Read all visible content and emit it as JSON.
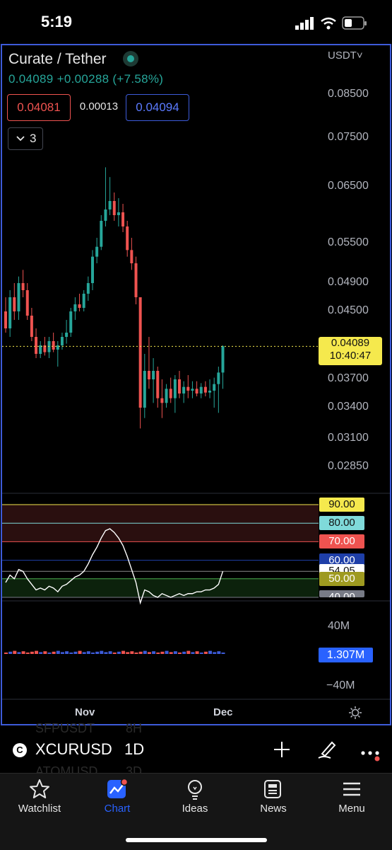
{
  "status_bar": {
    "time": "5:19"
  },
  "header": {
    "pair": "Curate / Tether",
    "last_price": "0.04089",
    "change": "+0.00288",
    "change_pct": "(+7.58%)",
    "bid": "0.04081",
    "spread": "0.00013",
    "ask": "0.04094",
    "indicator_count": "3",
    "currency": "USDT"
  },
  "price_axis": {
    "ticks": [
      "0.08500",
      "0.07500",
      "0.06500",
      "0.05500",
      "0.04900",
      "0.04500",
      "0.03700",
      "0.03400",
      "0.03100",
      "0.02850"
    ],
    "last_price_label": "0.04089",
    "countdown": "10:40:47"
  },
  "rsi_pane": {
    "levels": [
      {
        "label": "90.00",
        "bg": "#f5e94d",
        "fg": "#111111"
      },
      {
        "label": "80.00",
        "bg": "#7fdada",
        "fg": "#111111"
      },
      {
        "label": "70.00",
        "bg": "#ef5350",
        "fg": "#ffffff"
      },
      {
        "label": "60.00",
        "bg": "#1e3fa8",
        "fg": "#ffffff"
      },
      {
        "label": "54.05",
        "bg": "#ffffff",
        "fg": "#111111"
      },
      {
        "label": "50.00",
        "bg": "#9e9a20",
        "fg": "#ffffff"
      },
      {
        "label": "40.00",
        "bg": "#787b86",
        "fg": "#ffffff"
      }
    ]
  },
  "volume_pane": {
    "top_label": "40M",
    "bottom_label": "−40M",
    "current": "1.307M"
  },
  "time_axis": {
    "nov": "Nov",
    "dec": "Dec"
  },
  "symbol_bar": {
    "symbol": "XCURUSD",
    "interval": "1D",
    "ghost_top": "SFPUSDT",
    "ghost_top_interval": "8H",
    "ghost_bottom": "ATOMUSD",
    "ghost_bottom_interval": "3D",
    "logo_letter": "C"
  },
  "bottom_nav": {
    "items": [
      {
        "label": "Watchlist",
        "icon": "star-icon"
      },
      {
        "label": "Chart",
        "icon": "chart-icon"
      },
      {
        "label": "Ideas",
        "icon": "lightbulb-icon"
      },
      {
        "label": "News",
        "icon": "news-icon"
      },
      {
        "label": "Menu",
        "icon": "menu-icon"
      }
    ]
  },
  "chart_data": {
    "type": "candlestick",
    "up_color": "#26a69a",
    "down_color": "#ef5350",
    "candles": [
      [
        0.045,
        0.047,
        0.0425,
        0.043
      ],
      [
        0.043,
        0.048,
        0.042,
        0.047
      ],
      [
        0.047,
        0.049,
        0.044,
        0.045
      ],
      [
        0.045,
        0.05,
        0.044,
        0.049
      ],
      [
        0.049,
        0.051,
        0.047,
        0.048
      ],
      [
        0.048,
        0.049,
        0.044,
        0.0445
      ],
      [
        0.0445,
        0.0455,
        0.0415,
        0.042
      ],
      [
        0.042,
        0.043,
        0.0395,
        0.04
      ],
      [
        0.04,
        0.0415,
        0.0395,
        0.041
      ],
      [
        0.041,
        0.042,
        0.0398,
        0.0402
      ],
      [
        0.0402,
        0.042,
        0.0395,
        0.0415
      ],
      [
        0.0415,
        0.0425,
        0.0402,
        0.0405
      ],
      [
        0.0405,
        0.0415,
        0.0385,
        0.041
      ],
      [
        0.041,
        0.0425,
        0.0405,
        0.042
      ],
      [
        0.042,
        0.044,
        0.0412,
        0.0425
      ],
      [
        0.0425,
        0.0455,
        0.042,
        0.045
      ],
      [
        0.045,
        0.047,
        0.044,
        0.046
      ],
      [
        0.046,
        0.0475,
        0.045,
        0.0455
      ],
      [
        0.0455,
        0.048,
        0.045,
        0.0475
      ],
      [
        0.0475,
        0.05,
        0.0465,
        0.049
      ],
      [
        0.049,
        0.054,
        0.048,
        0.053
      ],
      [
        0.053,
        0.056,
        0.052,
        0.0545
      ],
      [
        0.0545,
        0.06,
        0.054,
        0.059
      ],
      [
        0.059,
        0.069,
        0.058,
        0.061
      ],
      [
        0.061,
        0.067,
        0.06,
        0.0625
      ],
      [
        0.0625,
        0.064,
        0.059,
        0.06
      ],
      [
        0.06,
        0.063,
        0.058,
        0.0605
      ],
      [
        0.0605,
        0.062,
        0.057,
        0.058
      ],
      [
        0.058,
        0.059,
        0.053,
        0.054
      ],
      [
        0.054,
        0.056,
        0.051,
        0.052
      ],
      [
        0.052,
        0.053,
        0.046,
        0.047
      ],
      [
        0.047,
        0.047,
        0.032,
        0.034
      ],
      [
        0.034,
        0.04,
        0.033,
        0.038
      ],
      [
        0.038,
        0.042,
        0.036,
        0.037
      ],
      [
        0.037,
        0.0395,
        0.0345,
        0.038
      ],
      [
        0.038,
        0.0385,
        0.034,
        0.035
      ],
      [
        0.035,
        0.037,
        0.033,
        0.0345
      ],
      [
        0.0345,
        0.0365,
        0.034,
        0.036
      ],
      [
        0.036,
        0.0372,
        0.0345,
        0.035
      ],
      [
        0.035,
        0.0375,
        0.0335,
        0.037
      ],
      [
        0.037,
        0.038,
        0.035,
        0.0355
      ],
      [
        0.0355,
        0.0368,
        0.0345,
        0.0362
      ],
      [
        0.0362,
        0.0375,
        0.035,
        0.0358
      ],
      [
        0.0358,
        0.0368,
        0.035,
        0.036
      ],
      [
        0.036,
        0.0368,
        0.0352,
        0.0355
      ],
      [
        0.0355,
        0.0366,
        0.035,
        0.0362
      ],
      [
        0.0362,
        0.0368,
        0.0352,
        0.0356
      ],
      [
        0.0356,
        0.037,
        0.035,
        0.0358
      ],
      [
        0.0358,
        0.0372,
        0.034,
        0.0365
      ],
      [
        0.0365,
        0.0385,
        0.0335,
        0.0378
      ],
      [
        0.0378,
        0.041,
        0.036,
        0.0409
      ]
    ],
    "rsi": [
      48,
      52,
      50,
      55,
      54,
      50,
      47,
      44,
      45,
      44,
      46,
      45,
      43,
      46,
      47,
      49,
      51,
      52,
      54,
      58,
      63,
      67,
      72,
      76,
      77,
      75,
      72,
      68,
      62,
      55,
      48,
      37,
      44,
      43,
      41,
      40,
      42,
      41,
      40,
      41,
      42,
      41,
      42,
      42,
      43,
      43,
      44,
      44,
      45,
      47,
      54.05
    ],
    "last_price": 0.04089,
    "rsi_levels": [
      90,
      80,
      70,
      60,
      50,
      40
    ]
  }
}
